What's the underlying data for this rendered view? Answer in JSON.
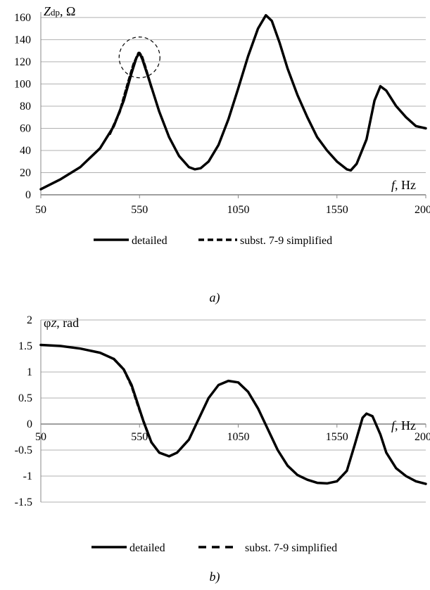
{
  "chart_data": [
    {
      "type": "line",
      "caption": "a)",
      "y_axis_title": {
        "main": "Z",
        "sub": "dp",
        "rest": ", Ω"
      },
      "x_axis_title": {
        "main": "f",
        "rest": ", Hz"
      },
      "x_ticks": [
        50,
        550,
        1050,
        1550,
        2000
      ],
      "y_ticks": [
        0,
        20,
        40,
        60,
        80,
        100,
        120,
        140,
        160
      ],
      "xlim": [
        50,
        2000
      ],
      "ylim": [
        0,
        165
      ],
      "grid": "horizontal",
      "legend_position": "bottom",
      "annotation": "dashed circle around peak near 550 Hz",
      "circle_center": [
        550,
        124
      ],
      "series": [
        {
          "name": "detailed",
          "style": "solid",
          "points": [
            [
              50,
              5
            ],
            [
              150,
              14
            ],
            [
              250,
              25
            ],
            [
              350,
              42
            ],
            [
              420,
              62
            ],
            [
              470,
              85
            ],
            [
              510,
              110
            ],
            [
              535,
              124
            ],
            [
              550,
              128
            ],
            [
              565,
              122
            ],
            [
              600,
              103
            ],
            [
              650,
              75
            ],
            [
              700,
              52
            ],
            [
              750,
              35
            ],
            [
              800,
              25
            ],
            [
              830,
              23
            ],
            [
              860,
              24
            ],
            [
              900,
              30
            ],
            [
              950,
              45
            ],
            [
              1000,
              68
            ],
            [
              1050,
              96
            ],
            [
              1100,
              125
            ],
            [
              1150,
              150
            ],
            [
              1190,
              162
            ],
            [
              1220,
              157
            ],
            [
              1260,
              137
            ],
            [
              1300,
              114
            ],
            [
              1350,
              90
            ],
            [
              1400,
              70
            ],
            [
              1450,
              52
            ],
            [
              1500,
              40
            ],
            [
              1550,
              30
            ],
            [
              1600,
              23
            ],
            [
              1620,
              22
            ],
            [
              1650,
              28
            ],
            [
              1700,
              50
            ],
            [
              1740,
              85
            ],
            [
              1770,
              98
            ],
            [
              1800,
              94
            ],
            [
              1850,
              80
            ],
            [
              1900,
              70
            ],
            [
              1950,
              62
            ],
            [
              2000,
              60
            ]
          ]
        },
        {
          "name": "subst. 7-9 simplified",
          "style": "dashed",
          "points": [
            [
              400,
              55
            ],
            [
              450,
              75
            ],
            [
              490,
              100
            ],
            [
              520,
              118
            ],
            [
              545,
              128
            ],
            [
              560,
              126
            ],
            [
              580,
              115
            ],
            [
              610,
              97
            ]
          ]
        }
      ]
    },
    {
      "type": "line",
      "caption": "b)",
      "y_axis_title": {
        "main": "φ",
        "sub": "Z",
        "rest": ", rad"
      },
      "x_axis_title": {
        "main": "f",
        "rest": ", Hz"
      },
      "x_ticks": [
        50,
        550,
        1050,
        1550,
        2000
      ],
      "y_ticks": [
        2,
        1.5,
        1,
        0.5,
        0,
        -0.5,
        -1,
        -1.5
      ],
      "xlim": [
        50,
        2000
      ],
      "ylim": [
        -1.5,
        2
      ],
      "grid": "horizontal",
      "legend_position": "bottom",
      "series": [
        {
          "name": "detailed",
          "style": "solid",
          "points": [
            [
              50,
              1.52
            ],
            [
              150,
              1.5
            ],
            [
              250,
              1.45
            ],
            [
              350,
              1.37
            ],
            [
              420,
              1.25
            ],
            [
              470,
              1.05
            ],
            [
              510,
              0.75
            ],
            [
              540,
              0.4
            ],
            [
              570,
              0.05
            ],
            [
              610,
              -0.35
            ],
            [
              650,
              -0.55
            ],
            [
              700,
              -0.62
            ],
            [
              740,
              -0.55
            ],
            [
              800,
              -0.3
            ],
            [
              850,
              0.1
            ],
            [
              900,
              0.5
            ],
            [
              950,
              0.75
            ],
            [
              1000,
              0.83
            ],
            [
              1050,
              0.8
            ],
            [
              1100,
              0.62
            ],
            [
              1150,
              0.3
            ],
            [
              1200,
              -0.1
            ],
            [
              1250,
              -0.5
            ],
            [
              1300,
              -0.8
            ],
            [
              1350,
              -0.98
            ],
            [
              1400,
              -1.07
            ],
            [
              1450,
              -1.13
            ],
            [
              1500,
              -1.14
            ],
            [
              1550,
              -1.1
            ],
            [
              1600,
              -0.9
            ],
            [
              1640,
              -0.4
            ],
            [
              1680,
              0.12
            ],
            [
              1700,
              0.2
            ],
            [
              1730,
              0.15
            ],
            [
              1770,
              -0.2
            ],
            [
              1800,
              -0.55
            ],
            [
              1850,
              -0.85
            ],
            [
              1900,
              -1.0
            ],
            [
              1950,
              -1.1
            ],
            [
              2000,
              -1.15
            ]
          ]
        },
        {
          "name": "subst. 7-9 simplified",
          "style": "dashed",
          "points": [
            [
              420,
              1.25
            ],
            [
              470,
              1.05
            ],
            [
              510,
              0.73
            ],
            [
              540,
              0.38
            ],
            [
              575,
              0.0
            ],
            [
              610,
              -0.35
            ]
          ]
        }
      ]
    }
  ]
}
